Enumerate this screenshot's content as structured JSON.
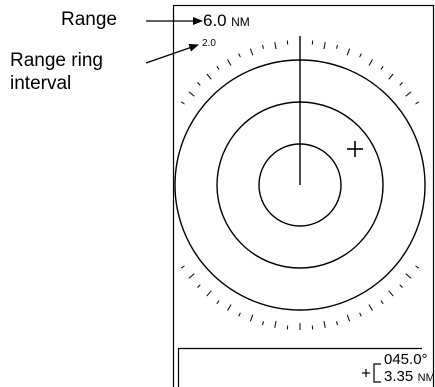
{
  "callouts": {
    "range_label": "Range",
    "ring_interval_label": [
      "Range ring",
      "interval"
    ]
  },
  "display": {
    "range_value": "6.0",
    "range_unit": "NM",
    "ring_interval_value": "2.0",
    "readout": {
      "bearing": "045.0°",
      "distance_value": "3.35",
      "distance_unit": "NM"
    }
  },
  "icons": {
    "cursor": "crosshair-cursor-icon",
    "readout_bracket": "bracket-icon"
  }
}
